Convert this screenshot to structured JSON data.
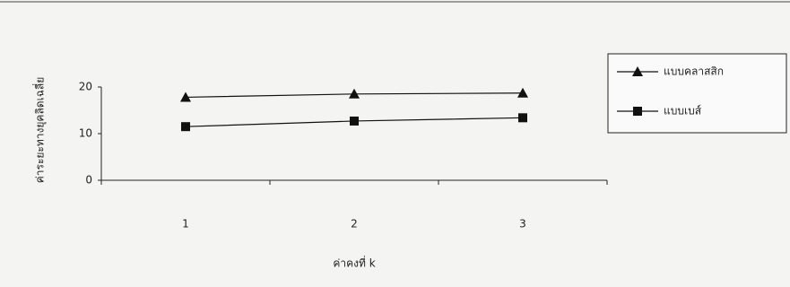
{
  "chart_data": {
    "type": "line",
    "x_label": "ค่าคงที่ k",
    "y_label": "ค่าระยะทางยุคลิดเฉลี่ย",
    "categories": [
      "1",
      "2",
      "3"
    ],
    "series": [
      {
        "name": "แบบคลาสสิก",
        "color": "#111111",
        "marker": "triangle",
        "values": [
          17.8,
          18.5,
          18.7
        ]
      },
      {
        "name": "แบบเบส์",
        "color": "#111111",
        "marker": "square",
        "values": [
          11.5,
          12.7,
          13.4
        ]
      }
    ],
    "ylim": [
      0,
      20
    ],
    "yticks": [
      0,
      10,
      20
    ],
    "grid": false,
    "legend": "right"
  }
}
